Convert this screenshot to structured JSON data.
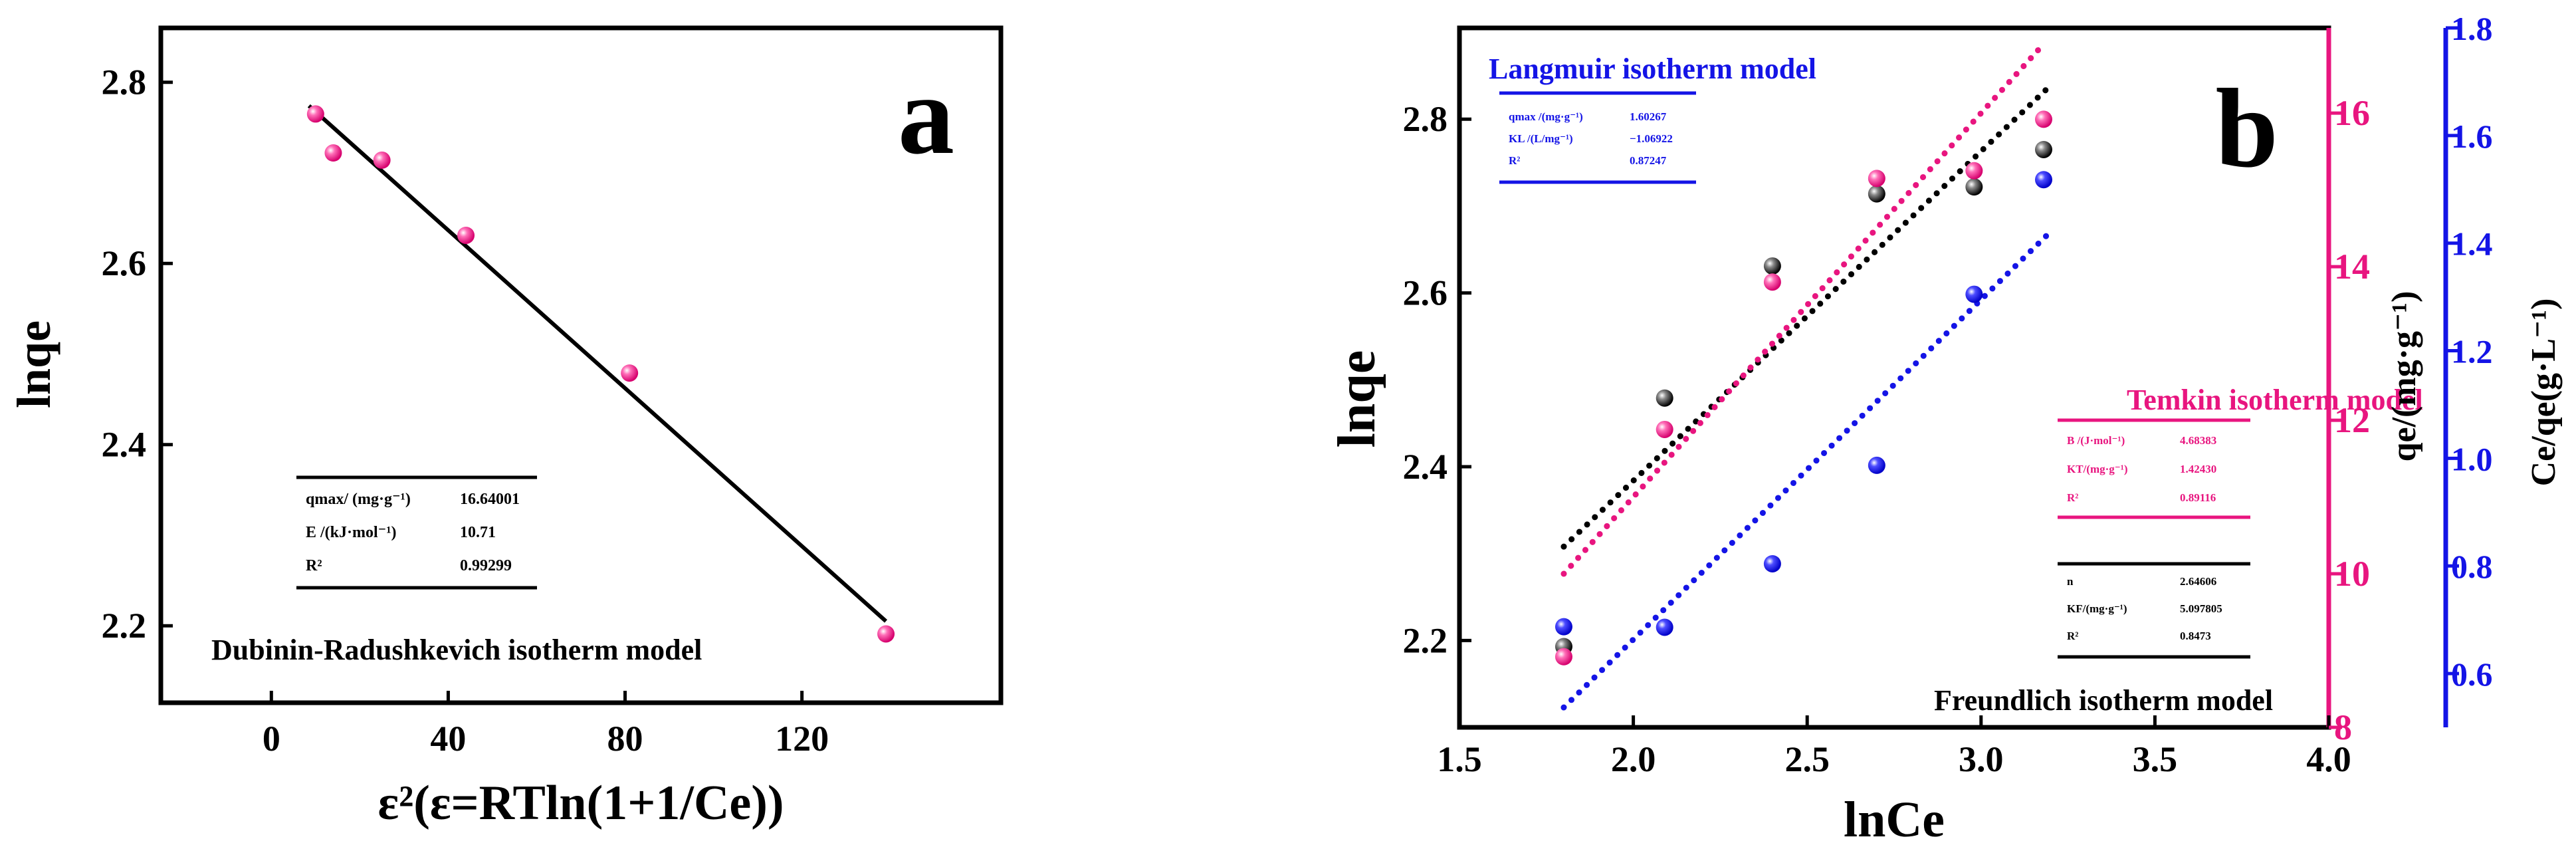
{
  "colors": {
    "black": "#000000",
    "pink": "#e8157f",
    "blue": "#1414e6"
  },
  "chart_data": [
    {
      "panel": "a",
      "type": "scatter",
      "xlabel": "ε²(ε=RTln(1+1/Ce))",
      "ylabel": "lnqe",
      "xlim": [
        -25,
        165
      ],
      "ylim": [
        2.115,
        2.86
      ],
      "xticks": [
        0,
        40,
        80,
        120
      ],
      "yticks": [
        2.2,
        2.4,
        2.6,
        2.8
      ],
      "series": [
        {
          "points": [
            [
              10,
              2.765
            ],
            [
              14,
              2.722
            ],
            [
              25,
              2.714
            ],
            [
              44,
              2.631
            ],
            [
              81,
              2.479
            ],
            [
              139,
              2.191
            ]
          ]
        }
      ],
      "fit_line": [
        [
          8.5,
          2.774
        ],
        [
          139,
          2.205
        ]
      ],
      "model_label": "Dubinin-Radushkevich isotherm model",
      "params": [
        {
          "name": "qmax/ (mg·g⁻¹)",
          "value": "16.64001"
        },
        {
          "name": "E /(kJ·mol⁻¹)",
          "value": "10.71"
        },
        {
          "name": "R²",
          "value": "0.99299"
        }
      ]
    },
    {
      "panel": "b",
      "type": "scatter",
      "xlabel": "lnCe",
      "ylabel": "lnqe",
      "xlim": [
        1.5,
        4.0
      ],
      "ylim": [
        2.1,
        2.905
      ],
      "xticks": [
        1.5,
        2.0,
        2.5,
        3.0,
        3.5,
        4.0
      ],
      "yticks": [
        2.2,
        2.4,
        2.6,
        2.8
      ],
      "y2": {
        "label": "qe/(mg·g⁻¹)",
        "ylim": [
          8,
          17.11
        ],
        "ticks": [
          8,
          10,
          12,
          14,
          16
        ]
      },
      "y3": {
        "label": "Ce/qe(g·L⁻¹)",
        "ylim": [
          0.5,
          1.8
        ],
        "ticks": [
          0.6,
          0.8,
          1.0,
          1.2,
          1.4,
          1.6,
          1.8
        ]
      },
      "series": [
        {
          "axis": "y",
          "color": "#000000",
          "points": [
            [
              1.8,
              2.193
            ],
            [
              2.09,
              2.479
            ],
            [
              2.4,
              2.631
            ],
            [
              2.7,
              2.714
            ],
            [
              2.98,
              2.722
            ],
            [
              3.18,
              2.765
            ]
          ],
          "fit": [
            [
              1.8,
              2.308
            ],
            [
              3.19,
              2.835
            ]
          ]
        },
        {
          "axis": "y2",
          "color": "#e8157f",
          "points": [
            [
              1.8,
              8.92
            ],
            [
              2.09,
              11.88
            ],
            [
              2.4,
              13.8
            ],
            [
              2.7,
              15.15
            ],
            [
              2.98,
              15.25
            ],
            [
              3.18,
              15.92
            ]
          ],
          "fit": [
            [
              1.8,
              10.0
            ],
            [
              3.17,
              16.85
            ]
          ]
        },
        {
          "axis": "y3",
          "color": "#1414e6",
          "points": [
            [
              1.8,
              0.687
            ],
            [
              2.09,
              0.686
            ],
            [
              2.4,
              0.804
            ],
            [
              2.7,
              0.987
            ],
            [
              2.98,
              1.305
            ],
            [
              3.18,
              1.518
            ]
          ],
          "fit": [
            [
              1.8,
              0.537
            ],
            [
              3.19,
              1.415
            ]
          ]
        }
      ],
      "langmuir": {
        "title": "Langmuir isotherm model",
        "params": [
          {
            "name": "qmax /(mg·g⁻¹)",
            "value": "1.60267"
          },
          {
            "name": "KL /(L/mg⁻¹)",
            "value": "−1.06922"
          },
          {
            "name": "R²",
            "value": "0.87247"
          }
        ]
      },
      "temkin": {
        "title": "Temkin isotherm model",
        "params": [
          {
            "name": "B /(J·mol⁻¹)",
            "value": "4.68383"
          },
          {
            "name": "KT/(mg·g⁻¹)",
            "value": "1.42430"
          },
          {
            "name": "R²",
            "value": "0.89116"
          }
        ]
      },
      "freundlich": {
        "title": "Freundlich isotherm model",
        "params": [
          {
            "name": "n",
            "value": "2.64606"
          },
          {
            "name": "KF/(mg·g⁻¹)",
            "value": "5.097805"
          },
          {
            "name": "R²",
            "value": "0.8473"
          }
        ]
      }
    }
  ]
}
